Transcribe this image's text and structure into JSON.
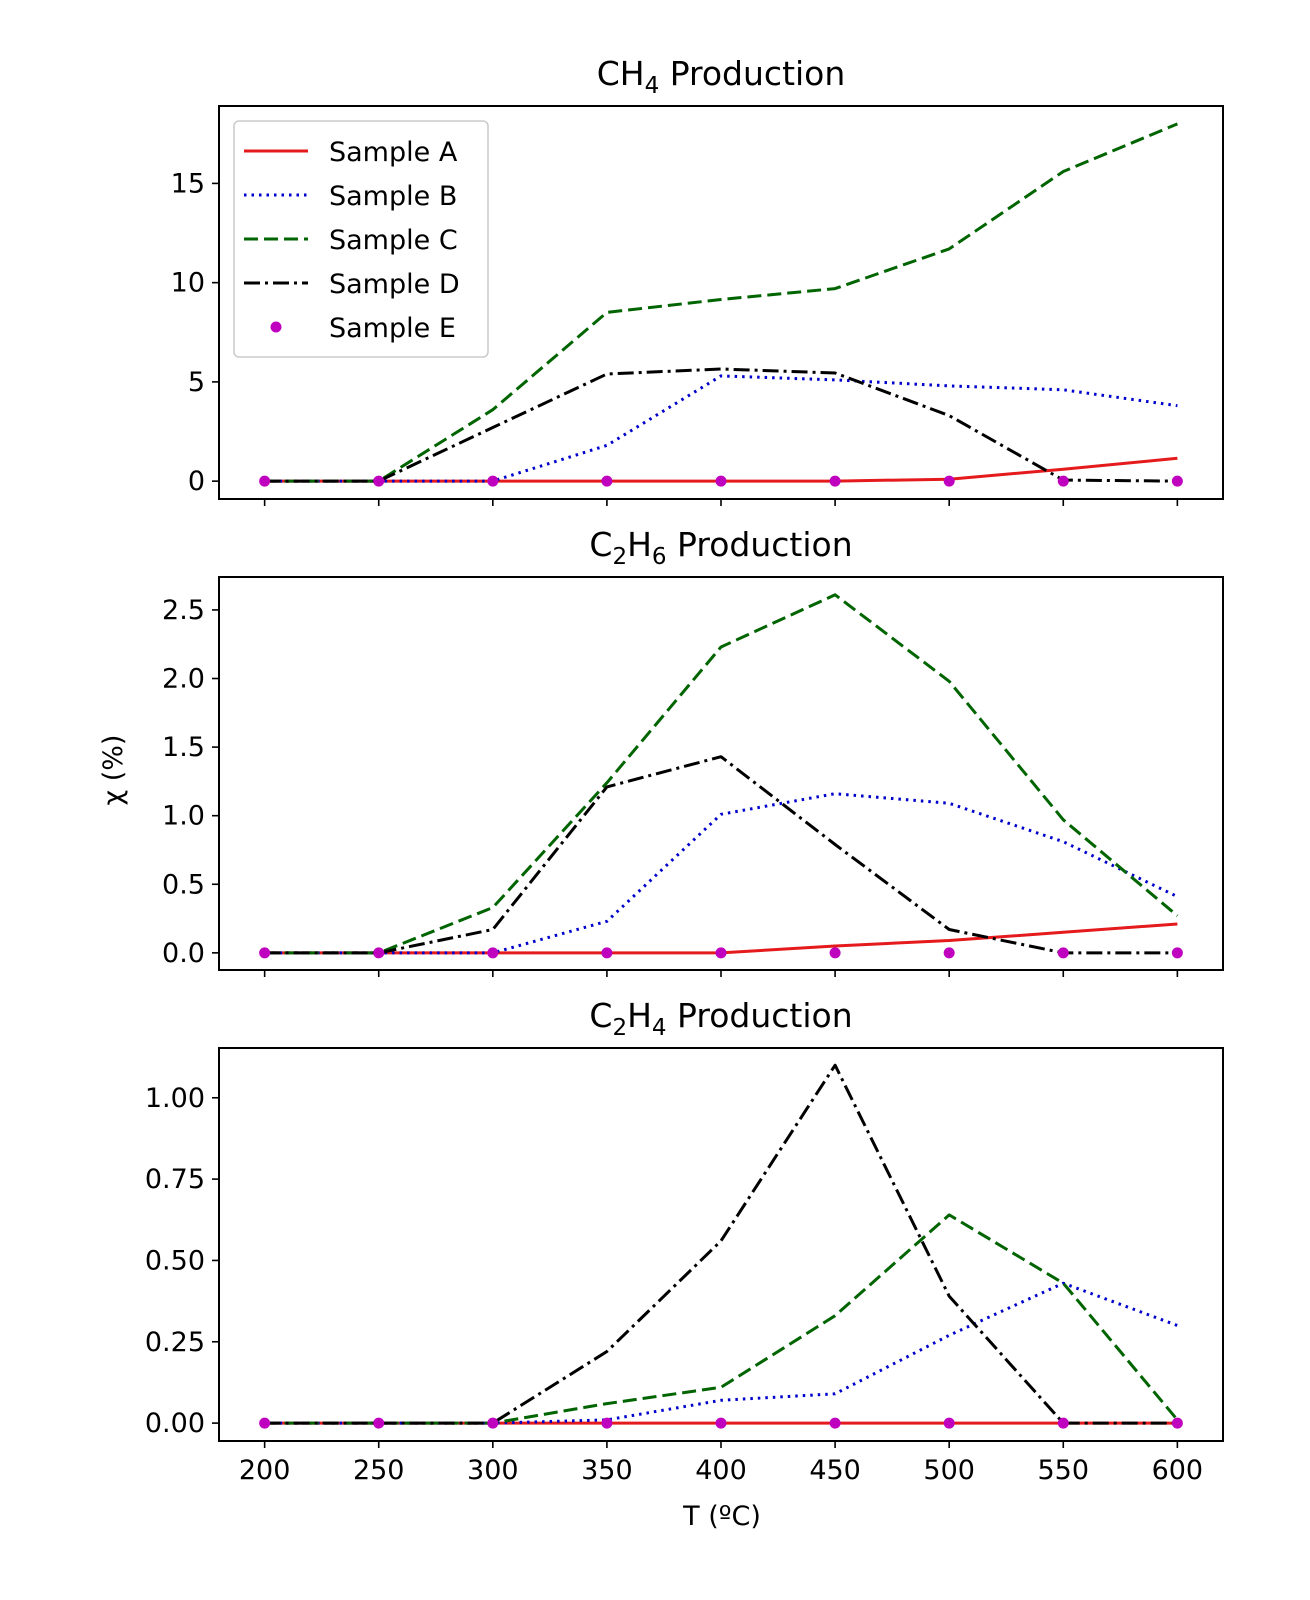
{
  "figure": {
    "ylabel": "χ (%)",
    "xlabel": "T (ºC)"
  },
  "chart_data": [
    {
      "type": "line",
      "title_main": "CH",
      "title_sub": "4",
      "title_rest": " Production",
      "x": [
        200,
        250,
        300,
        350,
        400,
        450,
        500,
        550,
        600
      ],
      "xlim": [
        180,
        620
      ],
      "ylim": [
        -0.9,
        18.9
      ],
      "yticks": [
        0,
        5,
        10,
        15
      ],
      "ytick_labels": [
        "0",
        "5",
        "10",
        "15"
      ],
      "show_xticklabels": false,
      "legend": true,
      "series": [
        {
          "name": "Sample A",
          "values": [
            0,
            0,
            0,
            0,
            0,
            0,
            0.1,
            0.6,
            1.15
          ]
        },
        {
          "name": "Sample B",
          "values": [
            0,
            0,
            0,
            1.8,
            5.3,
            5.1,
            4.8,
            4.6,
            3.8
          ]
        },
        {
          "name": "Sample C",
          "values": [
            0,
            0,
            3.6,
            8.5,
            9.15,
            9.7,
            11.7,
            15.6,
            18.0
          ]
        },
        {
          "name": "Sample D",
          "values": [
            0,
            0,
            2.7,
            5.4,
            5.65,
            5.45,
            3.3,
            0.05,
            0
          ]
        },
        {
          "name": "Sample E",
          "values": [
            0,
            0,
            0,
            0,
            0,
            0,
            0,
            0,
            0
          ]
        }
      ]
    },
    {
      "type": "line",
      "title_main": "C",
      "title_sub": "2",
      "title_mid": "H",
      "title_sub2": "6",
      "title_rest": " Production",
      "x": [
        200,
        250,
        300,
        350,
        400,
        450,
        500,
        550,
        600
      ],
      "xlim": [
        180,
        620
      ],
      "ylim": [
        -0.125,
        2.74
      ],
      "yticks": [
        0,
        0.5,
        1.0,
        1.5,
        2.0,
        2.5
      ],
      "ytick_labels": [
        "0.0",
        "0.5",
        "1.0",
        "1.5",
        "2.0",
        "2.5"
      ],
      "show_xticklabels": false,
      "legend": false,
      "series": [
        {
          "name": "Sample A",
          "values": [
            0,
            0,
            0,
            0,
            0,
            0.05,
            0.09,
            0.15,
            0.21
          ]
        },
        {
          "name": "Sample B",
          "values": [
            0,
            0,
            0,
            0.23,
            1.01,
            1.16,
            1.09,
            0.81,
            0.41
          ]
        },
        {
          "name": "Sample C",
          "values": [
            0,
            0,
            0.33,
            1.24,
            2.23,
            2.61,
            1.98,
            0.97,
            0.27
          ]
        },
        {
          "name": "Sample D",
          "values": [
            0,
            0,
            0.17,
            1.21,
            1.43,
            0.79,
            0.17,
            0,
            0
          ]
        },
        {
          "name": "Sample E",
          "values": [
            0,
            0,
            0,
            0,
            0,
            0,
            0,
            0,
            0
          ]
        }
      ]
    },
    {
      "type": "line",
      "title_main": "C",
      "title_sub": "2",
      "title_mid": "H",
      "title_sub2": "4",
      "title_rest": " Production",
      "x": [
        200,
        250,
        300,
        350,
        400,
        450,
        500,
        550,
        600
      ],
      "xlim": [
        180,
        620
      ],
      "ylim": [
        -0.055,
        1.153
      ],
      "yticks": [
        0,
        0.25,
        0.5,
        0.75,
        1.0
      ],
      "ytick_labels": [
        "0.00",
        "0.25",
        "0.50",
        "0.75",
        "1.00"
      ],
      "xticks": [
        200,
        250,
        300,
        350,
        400,
        450,
        500,
        550,
        600
      ],
      "xtick_labels": [
        "200",
        "250",
        "300",
        "350",
        "400",
        "450",
        "500",
        "550",
        "600"
      ],
      "show_xticklabels": true,
      "legend": false,
      "series": [
        {
          "name": "Sample A",
          "values": [
            0,
            0,
            0,
            0,
            0,
            0,
            0,
            0,
            0
          ]
        },
        {
          "name": "Sample B",
          "values": [
            0,
            0,
            0,
            0.01,
            0.07,
            0.09,
            0.27,
            0.43,
            0.3
          ]
        },
        {
          "name": "Sample C",
          "values": [
            0,
            0,
            0,
            0.06,
            0.11,
            0.33,
            0.64,
            0.43,
            0.01
          ]
        },
        {
          "name": "Sample D",
          "values": [
            0,
            0,
            0,
            0.22,
            0.56,
            1.1,
            0.39,
            0,
            0
          ]
        },
        {
          "name": "Sample E",
          "values": [
            0,
            0,
            0,
            0,
            0,
            0,
            0,
            0,
            0
          ]
        }
      ]
    }
  ],
  "series_styles": [
    {
      "color": "#e41a1c",
      "dash": "",
      "marker": false
    },
    {
      "color": "#0000cc",
      "dash": "2.5,5",
      "marker": false
    },
    {
      "color": "#006400",
      "dash": "14,6",
      "marker": false
    },
    {
      "color": "#000000",
      "dash": "16,5,3,5",
      "marker": false
    },
    {
      "color": "#bf00bf",
      "dash": "",
      "marker": true
    }
  ]
}
